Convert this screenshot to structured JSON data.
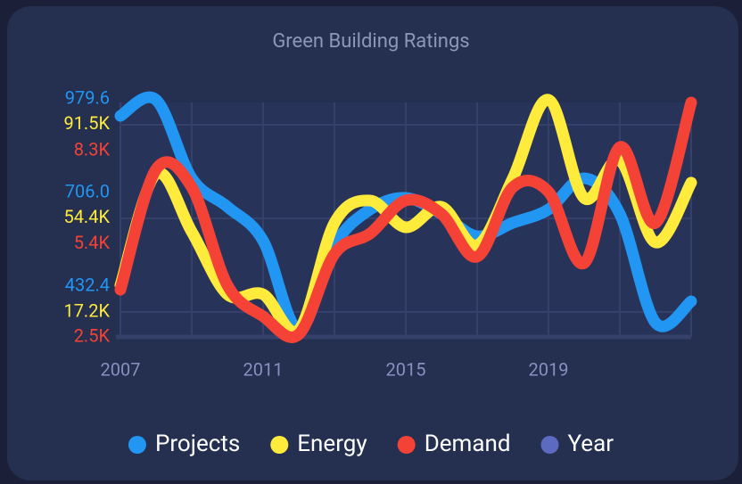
{
  "chart_data": {
    "type": "line",
    "title": "Green Building Ratings",
    "x": [
      2007,
      2008,
      2009,
      2010,
      2011,
      2012,
      2013,
      2014,
      2015,
      2016,
      2017,
      2018,
      2019,
      2020,
      2021,
      2022,
      2023
    ],
    "xlim": [
      2007,
      2023
    ],
    "xticks": [
      2007,
      2011,
      2015,
      2019
    ],
    "grid": true,
    "legend": "bottom",
    "series": [
      {
        "name": "Projects",
        "color": "#2196f3",
        "values": [
          1005.6,
          1052.5,
          823.2,
          739.8,
          640.8,
          380.2,
          627.7,
          732.0,
          765.9,
          719.0,
          653.8,
          692.9,
          732.0,
          823.2,
          719.0,
          401.0,
          463.5
        ],
        "ylim": [
          359.4,
          1044.7
        ],
        "yticks": [
          {
            "value": 432.4,
            "label": "432.4"
          },
          {
            "value": 706.0,
            "label": "706.0"
          },
          {
            "value": 979.6,
            "label": "979.6"
          }
        ]
      },
      {
        "name": "Energy",
        "color": "#ffeb3b",
        "values": [
          27800,
          72000,
          49000,
          24200,
          24200,
          10100,
          52500,
          61400,
          50800,
          58900,
          43700,
          70200,
          101400,
          62400,
          77300,
          44800,
          68500
        ],
        "ylim": [
          7300,
          100300
        ],
        "yticks": [
          {
            "value": 17200,
            "label": "17.2K"
          },
          {
            "value": 54400,
            "label": "54.4K"
          },
          {
            "value": 91500,
            "label": "91.5K"
          }
        ]
      },
      {
        "name": "Demand",
        "color": "#f44336",
        "values": [
          3170,
          6920,
          6360,
          3310,
          2340,
          1780,
          4280,
          4920,
          5950,
          5530,
          4200,
          6360,
          6220,
          4000,
          7610,
          5250,
          9000
        ],
        "ylim": [
          1700,
          9000
        ],
        "yticks": [
          {
            "value": 2500,
            "label": "2.5K"
          },
          {
            "value": 5400,
            "label": "5.4K"
          },
          {
            "value": 8300,
            "label": "8.3K"
          }
        ]
      },
      {
        "name": "Year",
        "color": "#5c6bc0"
      }
    ]
  }
}
